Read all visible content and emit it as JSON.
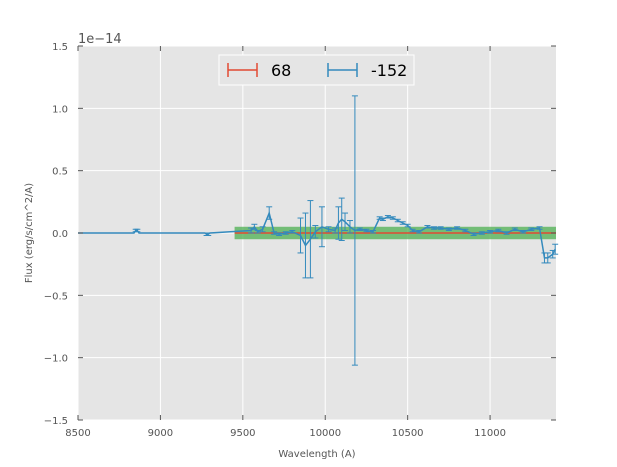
{
  "chart_data": {
    "type": "line",
    "title": "",
    "xlabel": "Wavelength (A)",
    "ylabel": "Flux (erg/s/cm^2/A)",
    "y_offset_label": "1e−14",
    "xlim": [
      8500,
      11400
    ],
    "ylim": [
      -1.5,
      1.5
    ],
    "y_unit_multiplier": 1e-14,
    "x_ticks": [
      8500,
      9000,
      9500,
      10000,
      10500,
      11000
    ],
    "x_tick_labels": [
      "8500",
      "9000",
      "9500",
      "10000",
      "10500",
      "11000"
    ],
    "y_ticks": [
      -1.5,
      -1.0,
      -0.5,
      0.0,
      0.5,
      1.0,
      1.5
    ],
    "y_tick_labels": [
      "−1.5",
      "−1.0",
      "−0.5",
      "0.0",
      "0.5",
      "1.0",
      "1.5"
    ],
    "grid": true,
    "background": "#e5e5e5",
    "legend": {
      "placement": "top-center",
      "entries": [
        {
          "label": "68",
          "color": "#e24a33"
        },
        {
          "label": "-152",
          "color": "#348abd"
        }
      ]
    },
    "band": {
      "x_start": 9450,
      "x_end": 11400,
      "y_min": -0.05,
      "y_max": 0.05,
      "color": "#4caf50"
    },
    "series": [
      {
        "name": "68",
        "color": "#e24a33",
        "x": [
          9450,
          11400
        ],
        "y": [
          0.0,
          0.0
        ],
        "yerr": [
          0,
          0
        ]
      },
      {
        "name": "-152",
        "color": "#348abd",
        "x": [
          8500,
          8840,
          8850,
          8860,
          8870,
          9270,
          9280,
          9290,
          9300,
          9550,
          9570,
          9590,
          9620,
          9660,
          9690,
          9720,
          9760,
          9800,
          9850,
          9880,
          9910,
          9940,
          9980,
          10020,
          10060,
          10080,
          10100,
          10120,
          10150,
          10180,
          10210,
          10250,
          10290,
          10330,
          10350,
          10380,
          10410,
          10440,
          10470,
          10500,
          10530,
          10570,
          10620,
          10660,
          10700,
          10750,
          10800,
          10850,
          10900,
          10950,
          11000,
          11050,
          11100,
          11150,
          11200,
          11250,
          11300,
          11330,
          11350,
          11380,
          11395
        ],
        "y": [
          0.0,
          0.0,
          0.02,
          0.02,
          0.0,
          0.0,
          -0.01,
          -0.01,
          0.0,
          0.02,
          0.05,
          0.01,
          0.03,
          0.16,
          0.0,
          -0.01,
          0.0,
          0.01,
          -0.02,
          -0.1,
          -0.05,
          0.01,
          0.05,
          0.03,
          0.02,
          0.08,
          0.11,
          0.09,
          0.05,
          0.02,
          0.03,
          0.02,
          0.01,
          0.12,
          0.11,
          0.13,
          0.12,
          0.1,
          0.08,
          0.06,
          0.02,
          0.01,
          0.05,
          0.04,
          0.04,
          0.03,
          0.04,
          0.02,
          -0.01,
          0.0,
          0.01,
          0.02,
          0.0,
          0.03,
          0.01,
          0.03,
          0.04,
          -0.2,
          -0.2,
          -0.17,
          -0.13
        ],
        "yerr": [
          0,
          0,
          0.01,
          0.01,
          0,
          0,
          0.01,
          0.01,
          0,
          0.02,
          0.02,
          0.01,
          0.02,
          0.05,
          0.01,
          0.01,
          0.01,
          0.01,
          0.14,
          0.26,
          0.31,
          0.05,
          0.16,
          0.02,
          0.02,
          0.13,
          0.17,
          0.07,
          0.05,
          1.08,
          0.01,
          0.01,
          0.01,
          0.01,
          0.01,
          0.01,
          0.01,
          0.01,
          0.01,
          0.01,
          0.01,
          0.01,
          0.01,
          0.01,
          0.01,
          0.01,
          0.01,
          0.01,
          0.01,
          0.01,
          0.01,
          0.01,
          0.01,
          0.01,
          0.01,
          0.01,
          0.01,
          0.04,
          0.04,
          0.03,
          0.04
        ]
      }
    ]
  }
}
